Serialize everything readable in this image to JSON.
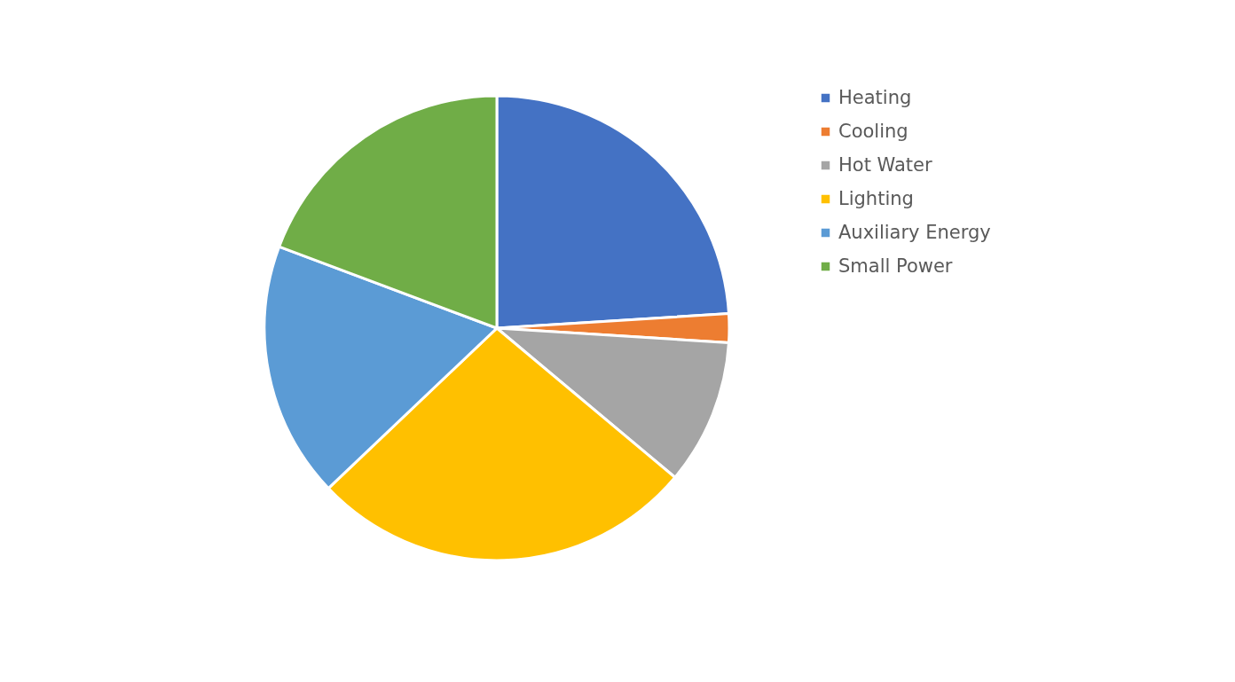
{
  "chart_data": {
    "type": "pie",
    "categories": [
      "Heating",
      "Cooling",
      "Hot Water",
      "Lighting",
      "Auxiliary Energy",
      "Small Power"
    ],
    "values": [
      24.0,
      2.0,
      10.1,
      26.8,
      17.8,
      19.3
    ],
    "colors": [
      "#4472c4",
      "#ed7d31",
      "#a5a5a5",
      "#ffc000",
      "#5b9bd5",
      "#70ad47"
    ],
    "legend": "right"
  }
}
